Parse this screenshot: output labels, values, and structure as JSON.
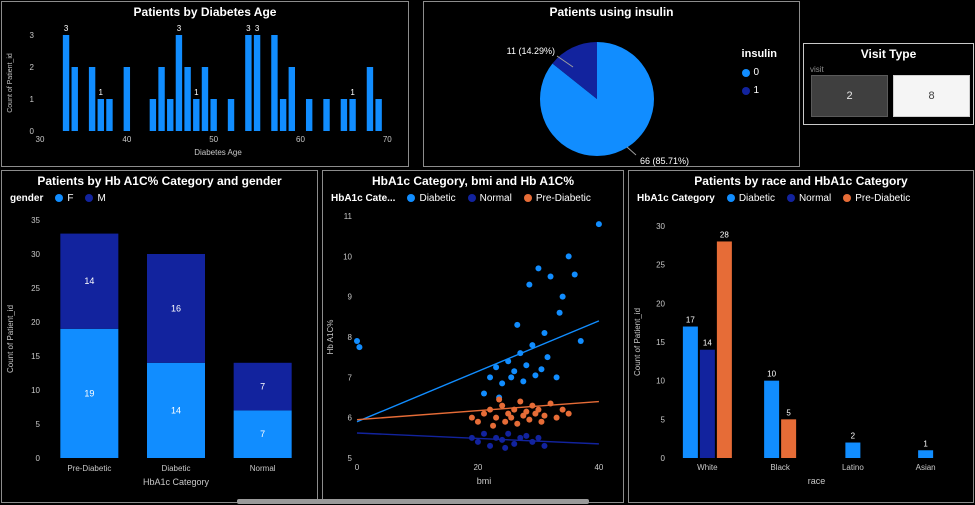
{
  "app": {
    "background": "#000000",
    "panel_border": "#8c8c8c"
  },
  "chart_data": [
    {
      "type": "bar",
      "subtype": "histogram",
      "title": "Patients by Diabetes Age",
      "xlabel": "Diabetes Age",
      "ylabel": "Count of Patient_id",
      "x_ticks": [
        30,
        40,
        50,
        60,
        70
      ],
      "x_range": [
        30,
        71
      ],
      "y_ticks": [
        0,
        1,
        2,
        3
      ],
      "y_max": 3,
      "bar_color": "#118DFF",
      "bars": [
        {
          "age": 33,
          "count": 3,
          "labeled": true
        },
        {
          "age": 34,
          "count": 2
        },
        {
          "age": 36,
          "count": 2
        },
        {
          "age": 37,
          "count": 1,
          "labeled": true
        },
        {
          "age": 38,
          "count": 1
        },
        {
          "age": 40,
          "count": 2
        },
        {
          "age": 43,
          "count": 1
        },
        {
          "age": 44,
          "count": 2
        },
        {
          "age": 45,
          "count": 1
        },
        {
          "age": 46,
          "count": 3,
          "labeled": true
        },
        {
          "age": 47,
          "count": 2
        },
        {
          "age": 48,
          "count": 1,
          "labeled": true
        },
        {
          "age": 49,
          "count": 2
        },
        {
          "age": 50,
          "count": 1
        },
        {
          "age": 52,
          "count": 1
        },
        {
          "age": 54,
          "count": 3,
          "labeled": true
        },
        {
          "age": 55,
          "count": 3,
          "labeled": true
        },
        {
          "age": 57,
          "count": 3
        },
        {
          "age": 58,
          "count": 1
        },
        {
          "age": 59,
          "count": 2
        },
        {
          "age": 61,
          "count": 1
        },
        {
          "age": 63,
          "count": 1
        },
        {
          "age": 65,
          "count": 1
        },
        {
          "age": 66,
          "count": 1,
          "labeled": true
        },
        {
          "age": 68,
          "count": 2
        },
        {
          "age": 69,
          "count": 1
        }
      ]
    },
    {
      "type": "pie",
      "title": "Patients using insulin",
      "legend_title": "insulin",
      "slices": [
        {
          "label": "0",
          "value": 66,
          "pct": "85.71%",
          "callout": "66 (85.71%)",
          "color": "#118DFF"
        },
        {
          "label": "1",
          "value": 11,
          "pct": "14.29%",
          "callout": "11 (14.29%)",
          "color": "#12239E"
        }
      ]
    },
    {
      "type": "bar",
      "subtype": "stacked",
      "title": "Patients by Hb A1C% Category and gender",
      "legend_title": "gender",
      "categories": [
        "Pre-Diabetic",
        "Diabetic",
        "Normal"
      ],
      "series": [
        {
          "name": "F",
          "color": "#118DFF",
          "values": [
            19,
            14,
            7
          ]
        },
        {
          "name": "M",
          "color": "#12239E",
          "values": [
            14,
            16,
            7
          ]
        }
      ],
      "xlabel": "HbA1c Category",
      "ylabel": "Count of Patient_id",
      "y_ticks": [
        0,
        5,
        10,
        15,
        20,
        25,
        30,
        35
      ],
      "y_max": 35
    },
    {
      "type": "scatter",
      "title": "HbA1c Category, bmi and Hb A1C%",
      "legend_title": "HbA1c Cate...",
      "xlabel": "bmi",
      "ylabel": "Hb A1C%",
      "x_ticks": [
        0,
        20,
        40
      ],
      "x_range": [
        0,
        42
      ],
      "y_ticks": [
        5,
        6,
        7,
        8,
        9,
        10,
        11
      ],
      "y_range": [
        5,
        11
      ],
      "series": [
        {
          "name": "Diabetic",
          "color": "#118DFF",
          "trend": [
            [
              0,
              5.9
            ],
            [
              40,
              8.4
            ]
          ],
          "points": [
            [
              0,
              7.9
            ],
            [
              0.4,
              7.75
            ],
            [
              21,
              6.6
            ],
            [
              22,
              7.0
            ],
            [
              23,
              7.25
            ],
            [
              23.5,
              6.5
            ],
            [
              24,
              6.85
            ],
            [
              25,
              7.4
            ],
            [
              25.5,
              7.0
            ],
            [
              26,
              7.15
            ],
            [
              26.5,
              8.3
            ],
            [
              27,
              7.6
            ],
            [
              27.5,
              6.9
            ],
            [
              28,
              7.3
            ],
            [
              28.5,
              9.3
            ],
            [
              29,
              7.8
            ],
            [
              29.5,
              7.05
            ],
            [
              30,
              9.7
            ],
            [
              30.5,
              7.2
            ],
            [
              31,
              8.1
            ],
            [
              31.5,
              7.5
            ],
            [
              32,
              9.5
            ],
            [
              33,
              7.0
            ],
            [
              33.5,
              8.6
            ],
            [
              34,
              9.0
            ],
            [
              35,
              10.0
            ],
            [
              36,
              9.55
            ],
            [
              37,
              7.9
            ],
            [
              40,
              10.8
            ]
          ]
        },
        {
          "name": "Normal",
          "color": "#12239E",
          "trend": [
            [
              0,
              5.62
            ],
            [
              40,
              5.35
            ]
          ],
          "points": [
            [
              19,
              5.5
            ],
            [
              20,
              5.4
            ],
            [
              21,
              5.6
            ],
            [
              22,
              5.3
            ],
            [
              23,
              5.5
            ],
            [
              24,
              5.45
            ],
            [
              24.5,
              5.25
            ],
            [
              25,
              5.6
            ],
            [
              26,
              5.35
            ],
            [
              27,
              5.5
            ],
            [
              28,
              5.55
            ],
            [
              29,
              5.4
            ],
            [
              30,
              5.5
            ],
            [
              31,
              5.3
            ]
          ]
        },
        {
          "name": "Pre-Diabetic",
          "color": "#E66C37",
          "trend": [
            [
              0,
              5.95
            ],
            [
              40,
              6.4
            ]
          ],
          "points": [
            [
              19,
              6.0
            ],
            [
              20,
              5.9
            ],
            [
              21,
              6.1
            ],
            [
              22,
              6.2
            ],
            [
              22.5,
              5.8
            ],
            [
              23,
              6.0
            ],
            [
              23.5,
              6.45
            ],
            [
              24,
              6.3
            ],
            [
              24.5,
              5.9
            ],
            [
              25,
              6.1
            ],
            [
              25.5,
              6.0
            ],
            [
              26,
              6.2
            ],
            [
              26.5,
              5.85
            ],
            [
              27,
              6.4
            ],
            [
              27.5,
              6.05
            ],
            [
              28,
              6.15
            ],
            [
              28.5,
              5.95
            ],
            [
              29,
              6.3
            ],
            [
              29.5,
              6.1
            ],
            [
              30,
              6.2
            ],
            [
              30.5,
              5.9
            ],
            [
              31,
              6.05
            ],
            [
              32,
              6.35
            ],
            [
              33,
              6.0
            ],
            [
              34,
              6.2
            ],
            [
              35,
              6.1
            ]
          ]
        }
      ]
    },
    {
      "type": "bar",
      "subtype": "clustered",
      "title": "Patients by race and HbA1c Category",
      "legend_title": "HbA1c Category",
      "categories": [
        "White",
        "Black",
        "Latino",
        "Asian"
      ],
      "series": [
        {
          "name": "Diabetic",
          "color": "#118DFF",
          "values": [
            17,
            10,
            2,
            1
          ]
        },
        {
          "name": "Normal",
          "color": "#12239E",
          "values": [
            14,
            null,
            null,
            null
          ]
        },
        {
          "name": "Pre-Diabetic",
          "color": "#E66C37",
          "values": [
            28,
            5,
            null,
            null
          ]
        }
      ],
      "xlabel": "race",
      "ylabel": "Count of Patient_id",
      "y_ticks": [
        0,
        5,
        10,
        15,
        20,
        25,
        30
      ],
      "y_max": 30
    }
  ],
  "visit_slicer": {
    "title": "Visit Type",
    "field_label": "visit",
    "options": [
      {
        "label": "2",
        "selected": false
      },
      {
        "label": "8",
        "selected": true
      }
    ]
  }
}
